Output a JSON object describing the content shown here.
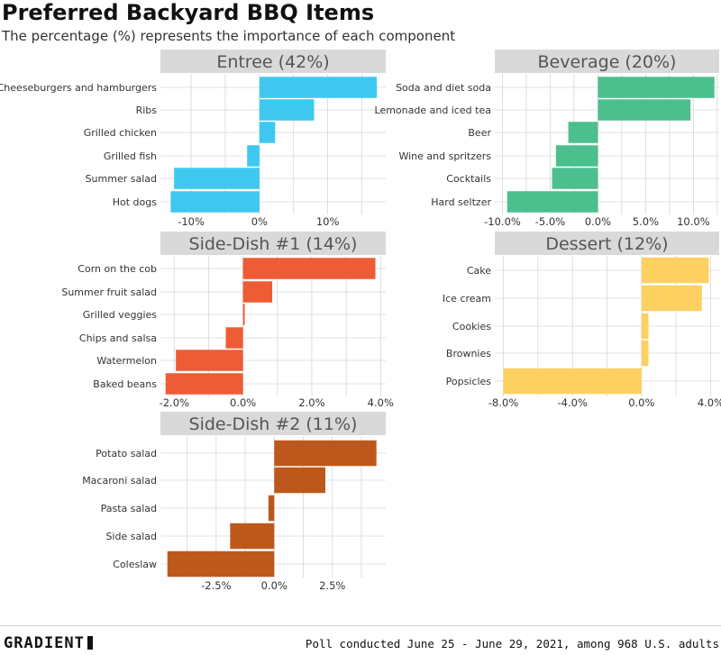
{
  "title": "Preferred Backyard BBQ Items",
  "subtitle": "The percentage (%) represents the importance of each component",
  "footer": {
    "logo": "GRADIENT",
    "source": "Poll conducted June 25 - June 29, 2021, among 968 U.S. adults"
  },
  "colors": {
    "entree": "#3ec8ef",
    "beverage": "#4cbf8e",
    "side1": "#ee5c36",
    "dessert": "#fdd062",
    "side2": "#bd581c",
    "panel_header": "#d9d9d9",
    "grid": "#d6d6d6"
  },
  "chart_data": [
    {
      "type": "bar",
      "orientation": "horizontal",
      "title": "Entree (42%)",
      "categories": [
        "Cheeseburgers and hamburgers",
        "Ribs",
        "Grilled chicken",
        "Grilled fish",
        "Summer salad",
        "Hot dogs"
      ],
      "values": [
        17.2,
        8.0,
        2.3,
        -1.8,
        -12.5,
        -13.0
      ],
      "xlim": [
        -14.5,
        18.5
      ],
      "ticks": [
        -10,
        0,
        10
      ],
      "tick_labels": [
        "-10%",
        "0%",
        "10%"
      ],
      "color": "#3ec8ef"
    },
    {
      "type": "bar",
      "orientation": "horizontal",
      "title": "Beverage (20%)",
      "categories": [
        "Soda and diet soda",
        "Lemonade and iced tea",
        "Beer",
        "Wine and spritzers",
        "Cocktails",
        "Hard seltzer"
      ],
      "values": [
        12.2,
        9.7,
        -3.1,
        -4.4,
        -4.8,
        -9.5
      ],
      "xlim": [
        -10.8,
        12.7
      ],
      "ticks": [
        -10,
        -5,
        0,
        5,
        10
      ],
      "tick_labels": [
        "-10.0%",
        "-5.0%",
        "0.0%",
        "5.0%",
        "10.0%"
      ],
      "color": "#4cbf8e"
    },
    {
      "type": "bar",
      "orientation": "horizontal",
      "title": "Side-Dish #1 (14%)",
      "categories": [
        "Corn on the cob",
        "Summer fruit salad",
        "Grilled veggies",
        "Chips and salsa",
        "Watermelon",
        "Baked beans"
      ],
      "values": [
        3.85,
        0.85,
        0.05,
        -0.5,
        -1.95,
        -2.25
      ],
      "xlim": [
        -2.4,
        4.15
      ],
      "ticks": [
        -2,
        0,
        2,
        4
      ],
      "tick_labels": [
        "-2.0%",
        "0.0%",
        "2.0%",
        "4.0%"
      ],
      "color": "#ee5c36"
    },
    {
      "type": "bar",
      "orientation": "horizontal",
      "title": "Dessert (12%)",
      "categories": [
        "Cake",
        "Ice cream",
        "Cookies",
        "Brownies",
        "Popsicles"
      ],
      "values": [
        3.9,
        3.5,
        0.4,
        0.4,
        -8.0
      ],
      "xlim": [
        -8.5,
        4.5
      ],
      "ticks": [
        -8,
        -4,
        0,
        4
      ],
      "tick_labels": [
        "-8.0%",
        "-4.0%",
        "0.0%",
        "4.0%"
      ],
      "color": "#fdd062"
    },
    {
      "type": "bar",
      "orientation": "horizontal",
      "title": "Side-Dish #2 (11%)",
      "categories": [
        "Potato salad",
        "Macaroni salad",
        "Pasta salad",
        "Side salad",
        "Coleslaw"
      ],
      "values": [
        4.4,
        2.2,
        -0.25,
        -1.9,
        -4.6
      ],
      "xlim": [
        -4.9,
        4.8
      ],
      "ticks": [
        -2.5,
        0,
        2.5
      ],
      "tick_labels": [
        "-2.5%",
        "0.0%",
        "2.5%"
      ],
      "color": "#bd581c"
    }
  ]
}
